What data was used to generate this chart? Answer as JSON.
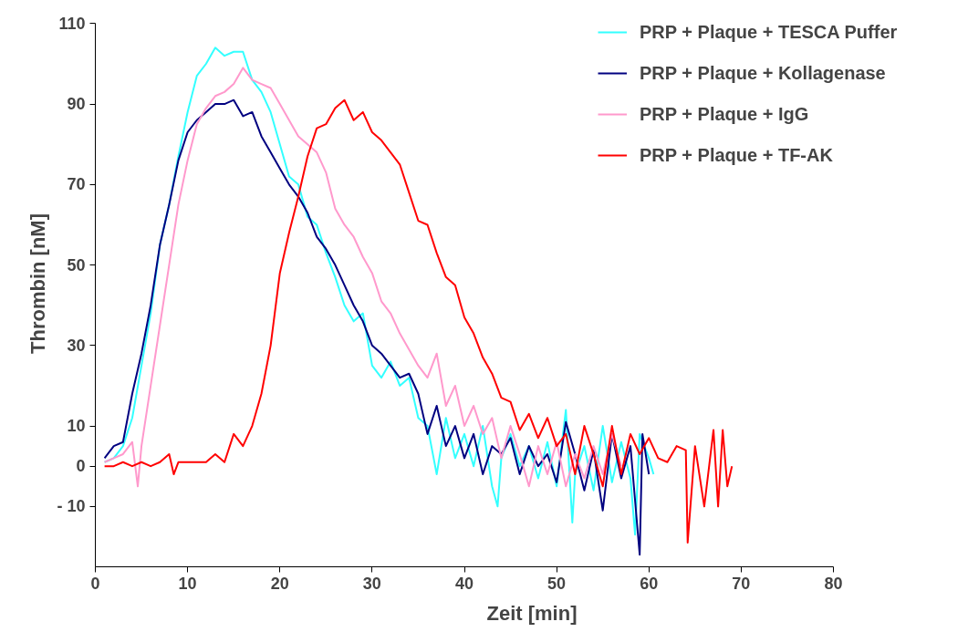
{
  "chart_data": {
    "type": "line",
    "xlabel": "Zeit [min]",
    "ylabel": "Thrombin [nM]",
    "xlim": [
      0,
      80
    ],
    "xticks": [
      0,
      10,
      20,
      30,
      40,
      50,
      60,
      70,
      80
    ],
    "ylim": [
      -25,
      110
    ],
    "yticks": [
      {
        "value": -10,
        "label": "- 10"
      },
      0,
      10,
      30,
      50,
      70,
      90,
      110
    ],
    "grid": false,
    "legend": "top right",
    "marker": "none",
    "line_style": "solid",
    "series": [
      {
        "name": "PRP + Plaque + TESCA Puffer",
        "color": "#33ffff",
        "x": [
          1,
          2,
          3,
          4,
          5,
          6,
          7,
          8,
          9,
          10,
          11,
          12,
          13,
          14,
          15,
          16,
          17,
          18,
          19,
          20,
          21,
          22,
          23,
          24,
          25,
          26,
          27,
          28,
          29,
          30,
          31,
          32,
          33,
          34,
          35,
          36,
          37,
          38,
          39,
          40,
          41,
          42,
          43,
          43.6,
          44,
          45,
          46,
          47,
          48,
          49,
          50,
          51,
          51.7,
          52,
          53,
          54,
          55,
          56,
          57,
          58,
          58.5,
          59,
          60,
          60.5
        ],
        "values": [
          1,
          2,
          5,
          12,
          25,
          38,
          55,
          65,
          77,
          88,
          97,
          100,
          104,
          102,
          103,
          103,
          96,
          93,
          88,
          80,
          72,
          70,
          62,
          60,
          53,
          47,
          40,
          36,
          38,
          25,
          22,
          26,
          20,
          22,
          12,
          10,
          -2,
          12,
          2,
          8,
          0,
          10,
          -5,
          -10,
          2,
          8,
          0,
          5,
          -3,
          6,
          -5,
          14,
          -14,
          -2,
          5,
          -6,
          10,
          -4,
          6,
          -3,
          -17,
          8,
          2,
          -2
        ]
      },
      {
        "name": "PRP + Plaque + Kollagenase",
        "color": "#000080",
        "x": [
          1,
          2,
          3,
          4,
          5,
          6,
          7,
          8,
          9,
          10,
          11,
          12,
          13,
          14,
          15,
          16,
          17,
          18,
          19,
          20,
          21,
          22,
          23,
          24,
          25,
          26,
          27,
          28,
          29,
          30,
          31,
          32,
          33,
          34,
          35,
          36,
          37,
          38,
          39,
          40,
          41,
          42,
          43,
          44,
          45,
          46,
          47,
          48,
          49,
          50,
          51,
          52,
          53,
          54,
          55,
          56,
          57,
          58,
          59,
          59.3,
          60
        ],
        "values": [
          2,
          5,
          6,
          18,
          28,
          40,
          55,
          65,
          76,
          83,
          86,
          88,
          90,
          90,
          91,
          87,
          88,
          82,
          78,
          74,
          70,
          67,
          63,
          57,
          54,
          50,
          45,
          40,
          36,
          30,
          28,
          25,
          22,
          23,
          18,
          8,
          15,
          5,
          10,
          2,
          8,
          -2,
          5,
          3,
          7,
          -2,
          5,
          0,
          3,
          -4,
          11,
          3,
          -6,
          4,
          -11,
          8,
          -3,
          5,
          -22,
          8,
          -2
        ]
      },
      {
        "name": "PRP + Plaque + IgG",
        "color": "#ff99cc",
        "x": [
          1,
          2,
          3,
          4,
          4.6,
          5,
          6,
          7,
          8,
          9,
          10,
          11,
          12,
          13,
          14,
          15,
          16,
          17,
          18,
          19,
          20,
          21,
          22,
          23,
          24,
          25,
          26,
          27,
          28,
          29,
          30,
          31,
          32,
          33,
          34,
          35,
          36,
          37,
          38,
          39,
          40,
          41,
          42,
          43,
          44,
          45,
          46,
          47,
          48,
          49,
          50,
          51,
          52,
          53,
          54,
          55,
          56,
          57
        ],
        "values": [
          1,
          2,
          3,
          6,
          -5,
          5,
          20,
          35,
          50,
          65,
          76,
          85,
          89,
          92,
          93,
          95,
          99,
          96,
          95,
          94,
          90,
          86,
          82,
          80,
          78,
          73,
          64,
          60,
          57,
          52,
          48,
          41,
          38,
          33,
          29,
          25,
          22,
          28,
          15,
          20,
          10,
          15,
          8,
          12,
          2,
          10,
          3,
          -5,
          5,
          -2,
          6,
          -5,
          3,
          -3,
          5,
          -2,
          8,
          0
        ]
      },
      {
        "name": "PRP + Plaque + TF-AK",
        "color": "#ff0000",
        "x": [
          1,
          2,
          3,
          4,
          5,
          6,
          7,
          8,
          8.5,
          9,
          10,
          11,
          12,
          13,
          14,
          15,
          16,
          17,
          18,
          19,
          20,
          21,
          22,
          23,
          24,
          25,
          26,
          27,
          28,
          29,
          30,
          31,
          32,
          33,
          34,
          35,
          36,
          37,
          38,
          39,
          40,
          41,
          42,
          43,
          44,
          45,
          46,
          47,
          48,
          49,
          50,
          51,
          52,
          53,
          54,
          55,
          56,
          57,
          58,
          59,
          60,
          61,
          62,
          63,
          64,
          64.2,
          65,
          66,
          67,
          67.5,
          68,
          68.5,
          69
        ],
        "values": [
          0,
          0,
          1,
          0,
          1,
          0,
          1,
          3,
          -2,
          1,
          1,
          1,
          1,
          3,
          1,
          8,
          5,
          10,
          18,
          30,
          48,
          58,
          67,
          77,
          84,
          85,
          89,
          91,
          86,
          88,
          83,
          81,
          78,
          75,
          68,
          61,
          60,
          53,
          47,
          45,
          37,
          33,
          27,
          23,
          17,
          16,
          9,
          13,
          7,
          12,
          5,
          8,
          -2,
          10,
          3,
          -5,
          10,
          -2,
          8,
          3,
          7,
          2,
          1,
          5,
          4,
          -19,
          5,
          -10,
          9,
          -10,
          9,
          -5,
          0
        ]
      }
    ]
  }
}
